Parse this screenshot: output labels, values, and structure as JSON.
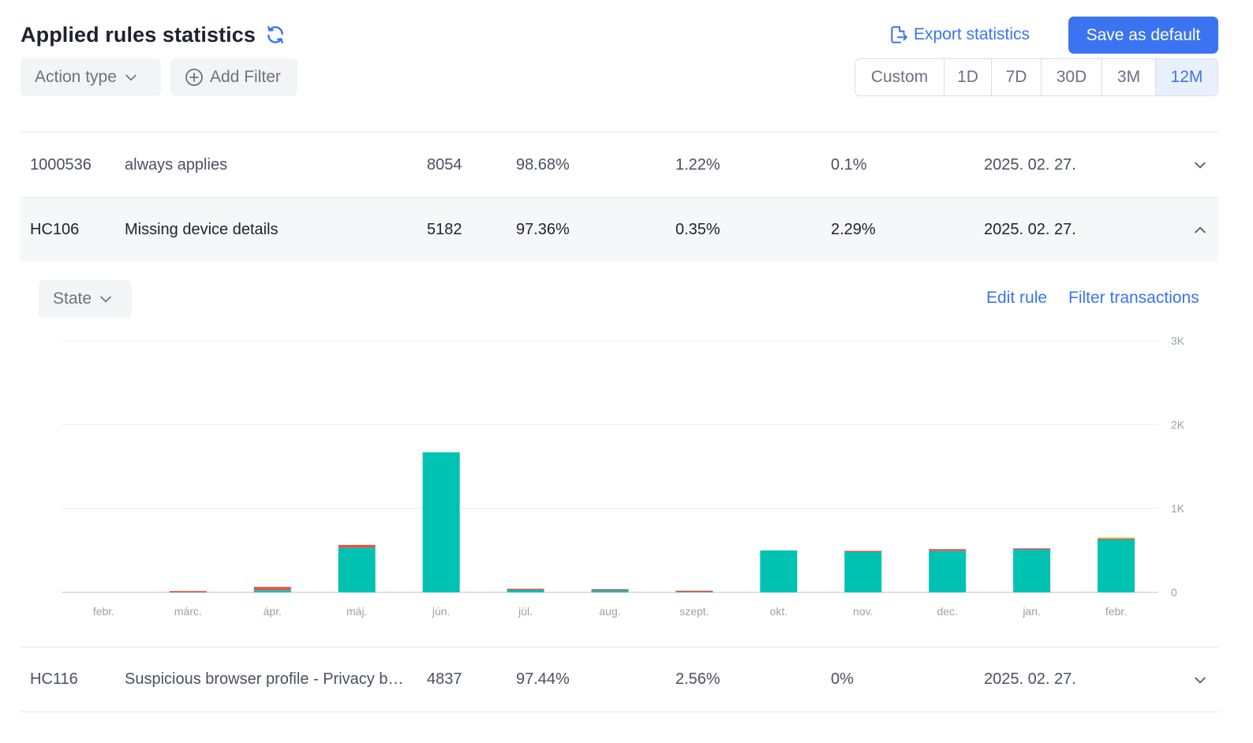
{
  "header": {
    "title": "Applied rules statistics",
    "export_label": "Export statistics",
    "save_label": "Save as default"
  },
  "filters": {
    "action_type_label": "Action type",
    "add_filter_label": "Add Filter"
  },
  "time_ranges": {
    "options": [
      "Custom",
      "1D",
      "7D",
      "30D",
      "3M",
      "12M"
    ],
    "selected": "12M"
  },
  "rules": [
    {
      "id": "1000536",
      "name": "always applies",
      "count": "8054",
      "p1": "98.68%",
      "p2": "1.22%",
      "p3": "0.1%",
      "date": "2025. 02. 27.",
      "expanded": false
    },
    {
      "id": "HC106",
      "name": "Missing device details",
      "count": "5182",
      "p1": "97.36%",
      "p2": "0.35%",
      "p3": "2.29%",
      "date": "2025. 02. 27.",
      "expanded": true
    },
    {
      "id": "HC116",
      "name": "Suspicious browser profile - Privacy browser",
      "count": "4837",
      "p1": "97.44%",
      "p2": "2.56%",
      "p3": "0%",
      "date": "2025. 02. 27.",
      "expanded": false
    }
  ],
  "expanded_panel": {
    "state_label": "State",
    "edit_rule_label": "Edit rule",
    "filter_transactions_label": "Filter transactions"
  },
  "colors": {
    "accent": "#3b74f0",
    "series_teal": "#00c2b3",
    "series_red": "#e5534b",
    "series_yellow": "#f2c94c"
  },
  "chart_data": {
    "type": "bar",
    "stacked": true,
    "categories": [
      "febr.",
      "márc.",
      "ápr.",
      "máj.",
      "jún.",
      "júl.",
      "aug.",
      "szept.",
      "okt.",
      "nov.",
      "dec.",
      "jan.",
      "febr."
    ],
    "series": [
      {
        "color": "#00c2b3",
        "values": [
          0,
          12,
          25,
          530,
          1670,
          35,
          30,
          18,
          500,
          490,
          495,
          515,
          640
        ]
      },
      {
        "color": "#e5534b",
        "values": [
          0,
          4,
          40,
          35,
          0,
          8,
          8,
          2,
          0,
          5,
          20,
          10,
          5
        ]
      },
      {
        "color": "#f2c94c",
        "values": [
          0,
          0,
          0,
          0,
          0,
          0,
          0,
          0,
          0,
          0,
          0,
          0,
          10
        ]
      }
    ],
    "yticks": [
      "0",
      "1K",
      "2K",
      "3K"
    ],
    "ylim": [
      0,
      3000
    ],
    "grid": true,
    "y_axis_side": "right"
  }
}
